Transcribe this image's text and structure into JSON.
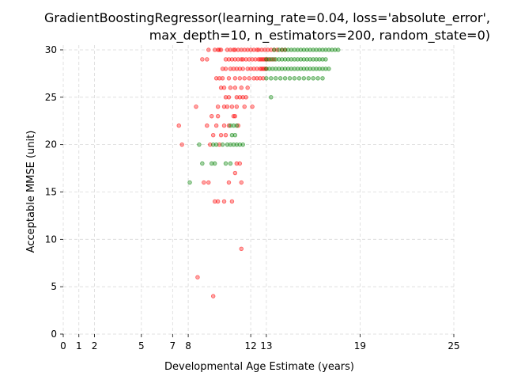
{
  "chart_data": {
    "type": "scatter",
    "title_lines": [
      "GradientBoostingRegressor(learning_rate=0.04, loss='absolute_error',",
      "max_depth=10, n_estimators=200, random_state=0)"
    ],
    "xlabel": "Developmental Age Estimate (years)",
    "ylabel": "Acceptable MMSE (unit)",
    "xlim": [
      0,
      25
    ],
    "ylim": [
      0,
      30.5
    ],
    "xticks": [
      0,
      1,
      2,
      5,
      7,
      8,
      12,
      13,
      19,
      25
    ],
    "yticks": [
      0,
      5,
      10,
      15,
      20,
      25,
      30
    ],
    "grid": true,
    "series": [
      {
        "color": "#ff0000",
        "points": [
          [
            9.3,
            30
          ],
          [
            9.7,
            30
          ],
          [
            9.9,
            30
          ],
          [
            10.0,
            30
          ],
          [
            10.1,
            30
          ],
          [
            10.5,
            30
          ],
          [
            10.7,
            30
          ],
          [
            10.9,
            30
          ],
          [
            11.0,
            30
          ],
          [
            11.2,
            30
          ],
          [
            11.4,
            30
          ],
          [
            11.6,
            30
          ],
          [
            11.8,
            30
          ],
          [
            12.0,
            30
          ],
          [
            12.2,
            30
          ],
          [
            12.4,
            30
          ],
          [
            12.5,
            30
          ],
          [
            12.7,
            30
          ],
          [
            12.9,
            30
          ],
          [
            13.1,
            30
          ],
          [
            13.3,
            30
          ],
          [
            13.5,
            30
          ],
          [
            13.7,
            30
          ],
          [
            14.0,
            30
          ],
          [
            14.2,
            30
          ],
          [
            8.9,
            29
          ],
          [
            9.2,
            29
          ],
          [
            10.4,
            29
          ],
          [
            10.6,
            29
          ],
          [
            10.8,
            29
          ],
          [
            11.0,
            29
          ],
          [
            11.2,
            29
          ],
          [
            11.4,
            29
          ],
          [
            11.5,
            29
          ],
          [
            11.7,
            29
          ],
          [
            11.9,
            29
          ],
          [
            12.1,
            29
          ],
          [
            12.3,
            29
          ],
          [
            12.5,
            29
          ],
          [
            12.6,
            29
          ],
          [
            12.7,
            29
          ],
          [
            12.8,
            29
          ],
          [
            12.9,
            29
          ],
          [
            13.0,
            29
          ],
          [
            13.1,
            29
          ],
          [
            13.3,
            29
          ],
          [
            13.5,
            29
          ],
          [
            10.2,
            28
          ],
          [
            10.4,
            28
          ],
          [
            10.7,
            28
          ],
          [
            10.9,
            28
          ],
          [
            11.1,
            28
          ],
          [
            11.3,
            28
          ],
          [
            11.5,
            28
          ],
          [
            11.8,
            28
          ],
          [
            12.0,
            28
          ],
          [
            12.2,
            28
          ],
          [
            12.4,
            28
          ],
          [
            12.6,
            28
          ],
          [
            12.7,
            28
          ],
          [
            12.8,
            28
          ],
          [
            12.9,
            28
          ],
          [
            13.0,
            28
          ],
          [
            9.8,
            27
          ],
          [
            10.0,
            27
          ],
          [
            10.2,
            27
          ],
          [
            10.6,
            27
          ],
          [
            11.0,
            27
          ],
          [
            11.3,
            27
          ],
          [
            11.6,
            27
          ],
          [
            11.9,
            27
          ],
          [
            12.2,
            27
          ],
          [
            12.4,
            27
          ],
          [
            12.6,
            27
          ],
          [
            12.8,
            27
          ],
          [
            10.1,
            26
          ],
          [
            10.3,
            26
          ],
          [
            10.7,
            26
          ],
          [
            11.0,
            26
          ],
          [
            11.4,
            26
          ],
          [
            11.8,
            26
          ],
          [
            10.4,
            25
          ],
          [
            10.6,
            25
          ],
          [
            11.1,
            25
          ],
          [
            11.3,
            25
          ],
          [
            11.5,
            25
          ],
          [
            11.7,
            25
          ],
          [
            8.5,
            24
          ],
          [
            9.9,
            24
          ],
          [
            10.3,
            24
          ],
          [
            10.5,
            24
          ],
          [
            10.8,
            24
          ],
          [
            11.1,
            24
          ],
          [
            11.6,
            24
          ],
          [
            12.1,
            24
          ],
          [
            9.5,
            23
          ],
          [
            9.9,
            23
          ],
          [
            10.9,
            23
          ],
          [
            11.0,
            23
          ],
          [
            7.4,
            22
          ],
          [
            9.2,
            22
          ],
          [
            9.8,
            22
          ],
          [
            10.3,
            22
          ],
          [
            10.6,
            22
          ],
          [
            11.2,
            22
          ],
          [
            9.6,
            21
          ],
          [
            10.1,
            21
          ],
          [
            10.4,
            21
          ],
          [
            7.6,
            20
          ],
          [
            9.4,
            20
          ],
          [
            10.0,
            20
          ],
          [
            11.1,
            18
          ],
          [
            11.3,
            18
          ],
          [
            11.0,
            17
          ],
          [
            9.0,
            16
          ],
          [
            9.3,
            16
          ],
          [
            10.6,
            16
          ],
          [
            11.4,
            16
          ],
          [
            9.7,
            14
          ],
          [
            9.9,
            14
          ],
          [
            10.3,
            14
          ],
          [
            10.8,
            14
          ],
          [
            11.4,
            9
          ],
          [
            8.6,
            6
          ],
          [
            9.6,
            4
          ]
        ]
      },
      {
        "color": "#008000",
        "points": [
          [
            13.5,
            30
          ],
          [
            13.8,
            30
          ],
          [
            14.0,
            30
          ],
          [
            14.2,
            30
          ],
          [
            14.4,
            30
          ],
          [
            14.6,
            30
          ],
          [
            14.8,
            30
          ],
          [
            15.0,
            30
          ],
          [
            15.2,
            30
          ],
          [
            15.4,
            30
          ],
          [
            15.6,
            30
          ],
          [
            15.8,
            30
          ],
          [
            16.0,
            30
          ],
          [
            16.2,
            30
          ],
          [
            16.4,
            30
          ],
          [
            16.6,
            30
          ],
          [
            16.8,
            30
          ],
          [
            17.0,
            30
          ],
          [
            17.2,
            30
          ],
          [
            17.4,
            30
          ],
          [
            17.6,
            30
          ],
          [
            13.0,
            29
          ],
          [
            13.2,
            29
          ],
          [
            13.4,
            29
          ],
          [
            13.6,
            29
          ],
          [
            13.8,
            29
          ],
          [
            14.0,
            29
          ],
          [
            14.2,
            29
          ],
          [
            14.4,
            29
          ],
          [
            14.6,
            29
          ],
          [
            14.8,
            29
          ],
          [
            15.0,
            29
          ],
          [
            15.2,
            29
          ],
          [
            15.4,
            29
          ],
          [
            15.6,
            29
          ],
          [
            15.8,
            29
          ],
          [
            16.0,
            29
          ],
          [
            16.2,
            29
          ],
          [
            16.4,
            29
          ],
          [
            16.6,
            29
          ],
          [
            16.8,
            29
          ],
          [
            13.0,
            28
          ],
          [
            13.2,
            28
          ],
          [
            13.4,
            28
          ],
          [
            13.6,
            28
          ],
          [
            13.8,
            28
          ],
          [
            14.0,
            28
          ],
          [
            14.2,
            28
          ],
          [
            14.4,
            28
          ],
          [
            14.6,
            28
          ],
          [
            14.8,
            28
          ],
          [
            15.0,
            28
          ],
          [
            15.2,
            28
          ],
          [
            15.4,
            28
          ],
          [
            15.6,
            28
          ],
          [
            15.8,
            28
          ],
          [
            16.0,
            28
          ],
          [
            16.2,
            28
          ],
          [
            16.4,
            28
          ],
          [
            16.6,
            28
          ],
          [
            16.8,
            28
          ],
          [
            17.0,
            28
          ],
          [
            13.0,
            27
          ],
          [
            13.3,
            27
          ],
          [
            13.6,
            27
          ],
          [
            13.9,
            27
          ],
          [
            14.2,
            27
          ],
          [
            14.5,
            27
          ],
          [
            14.8,
            27
          ],
          [
            15.1,
            27
          ],
          [
            15.4,
            27
          ],
          [
            15.7,
            27
          ],
          [
            16.0,
            27
          ],
          [
            16.3,
            27
          ],
          [
            16.6,
            27
          ],
          [
            13.3,
            25
          ],
          [
            10.7,
            22
          ],
          [
            10.9,
            22
          ],
          [
            11.1,
            22
          ],
          [
            10.8,
            21
          ],
          [
            11.0,
            21
          ],
          [
            8.7,
            20
          ],
          [
            9.6,
            20
          ],
          [
            9.8,
            20
          ],
          [
            10.2,
            20
          ],
          [
            10.5,
            20
          ],
          [
            10.7,
            20
          ],
          [
            10.9,
            20
          ],
          [
            11.1,
            20
          ],
          [
            11.3,
            20
          ],
          [
            11.5,
            20
          ],
          [
            8.9,
            18
          ],
          [
            9.5,
            18
          ],
          [
            9.7,
            18
          ],
          [
            10.4,
            18
          ],
          [
            10.7,
            18
          ],
          [
            8.1,
            16
          ]
        ]
      }
    ]
  }
}
